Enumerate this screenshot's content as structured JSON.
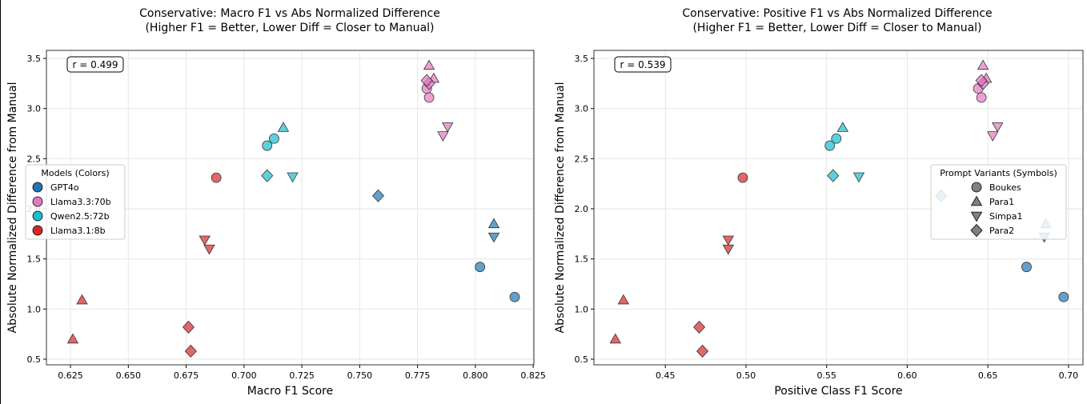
{
  "chart_data": [
    {
      "type": "scatter",
      "title": "Conservative: Macro F1 vs Abs Normalized Difference",
      "subtitle": "(Higher F1 = Better, Lower Diff = Closer to Manual)",
      "xlabel": "Macro F1 Score",
      "ylabel": "Absolute Normalized Difference from Manual",
      "xlim": [
        0.6146,
        0.8253
      ],
      "ylim": [
        0.444,
        3.58
      ],
      "xticks": [
        "0.625",
        "0.650",
        "0.675",
        "0.700",
        "0.725",
        "0.750",
        "0.775",
        "0.800",
        "0.825"
      ],
      "yticks": [
        "0.5",
        "1.0",
        "1.5",
        "2.0",
        "2.5",
        "3.0",
        "3.5"
      ],
      "grid": true,
      "annotation": "r = 0.499",
      "legend": {
        "title": "Models (Colors)",
        "placement": "center-left",
        "entries": [
          "GPT4o",
          "Llama3.3:70b",
          "Qwen2.5:72b",
          "Llama3.1:8b"
        ]
      },
      "series": [
        {
          "name": "GPT4o",
          "points": [
            {
              "x": 0.802,
              "y": 1.42,
              "variant": "Boukes"
            },
            {
              "x": 0.817,
              "y": 1.12,
              "variant": "Boukes"
            },
            {
              "x": 0.808,
              "y": 1.85,
              "variant": "Para1"
            },
            {
              "x": 0.808,
              "y": 1.72,
              "variant": "Simpa1"
            },
            {
              "x": 0.758,
              "y": 2.13,
              "variant": "Para2"
            }
          ]
        },
        {
          "name": "Llama3.3:70b",
          "points": [
            {
              "x": 0.779,
              "y": 3.2,
              "variant": "Boukes"
            },
            {
              "x": 0.78,
              "y": 3.11,
              "variant": "Boukes"
            },
            {
              "x": 0.78,
              "y": 3.43,
              "variant": "Para1"
            },
            {
              "x": 0.782,
              "y": 3.3,
              "variant": "Para1"
            },
            {
              "x": 0.788,
              "y": 2.82,
              "variant": "Simpa1"
            },
            {
              "x": 0.786,
              "y": 2.73,
              "variant": "Simpa1"
            },
            {
              "x": 0.78,
              "y": 3.25,
              "variant": "Para2"
            },
            {
              "x": 0.779,
              "y": 3.28,
              "variant": "Para2"
            }
          ]
        },
        {
          "name": "Qwen2.5:72b",
          "points": [
            {
              "x": 0.71,
              "y": 2.63,
              "variant": "Boukes"
            },
            {
              "x": 0.713,
              "y": 2.7,
              "variant": "Boukes"
            },
            {
              "x": 0.717,
              "y": 2.81,
              "variant": "Para1"
            },
            {
              "x": 0.721,
              "y": 2.32,
              "variant": "Simpa1"
            },
            {
              "x": 0.71,
              "y": 2.33,
              "variant": "Para2"
            }
          ]
        },
        {
          "name": "Llama3.1:8b",
          "points": [
            {
              "x": 0.688,
              "y": 2.31,
              "variant": "Boukes"
            },
            {
              "x": 0.63,
              "y": 1.09,
              "variant": "Para1"
            },
            {
              "x": 0.626,
              "y": 0.7,
              "variant": "Para1"
            },
            {
              "x": 0.683,
              "y": 1.69,
              "variant": "Simpa1"
            },
            {
              "x": 0.685,
              "y": 1.6,
              "variant": "Simpa1"
            },
            {
              "x": 0.676,
              "y": 0.82,
              "variant": "Para2"
            },
            {
              "x": 0.677,
              "y": 0.58,
              "variant": "Para2"
            }
          ]
        }
      ]
    },
    {
      "type": "scatter",
      "title": "Conservative: Positive F1 vs Abs Normalized Difference",
      "subtitle": "(Higher F1 = Better, Lower Diff = Closer to Manual)",
      "xlabel": "Positive Class F1 Score",
      "ylabel": "Absolute Normalized Difference from Manual",
      "xlim": [
        0.4057,
        0.709
      ],
      "ylim": [
        0.444,
        3.58
      ],
      "xticks": [
        "0.45",
        "0.50",
        "0.55",
        "0.60",
        "0.65",
        "0.70"
      ],
      "yticks": [
        "0.5",
        "1.0",
        "1.5",
        "2.0",
        "2.5",
        "3.0",
        "3.5"
      ],
      "grid": true,
      "annotation": "r = 0.539",
      "legend": {
        "title": "Prompt Variants (Symbols)",
        "placement": "center-right",
        "entries": [
          "Boukes",
          "Para1",
          "Simpa1",
          "Para2"
        ]
      },
      "series": [
        {
          "name": "GPT4o",
          "points": [
            {
              "x": 0.674,
              "y": 1.42,
              "variant": "Boukes"
            },
            {
              "x": 0.697,
              "y": 1.12,
              "variant": "Boukes"
            },
            {
              "x": 0.686,
              "y": 1.85,
              "variant": "Para1"
            },
            {
              "x": 0.685,
              "y": 1.72,
              "variant": "Simpa1"
            },
            {
              "x": 0.621,
              "y": 2.13,
              "variant": "Para2"
            }
          ]
        },
        {
          "name": "Llama3.3:70b",
          "points": [
            {
              "x": 0.644,
              "y": 3.2,
              "variant": "Boukes"
            },
            {
              "x": 0.646,
              "y": 3.11,
              "variant": "Boukes"
            },
            {
              "x": 0.647,
              "y": 3.43,
              "variant": "Para1"
            },
            {
              "x": 0.649,
              "y": 3.3,
              "variant": "Para1"
            },
            {
              "x": 0.656,
              "y": 2.82,
              "variant": "Simpa1"
            },
            {
              "x": 0.653,
              "y": 2.73,
              "variant": "Simpa1"
            },
            {
              "x": 0.647,
              "y": 3.25,
              "variant": "Para2"
            },
            {
              "x": 0.646,
              "y": 3.28,
              "variant": "Para2"
            }
          ]
        },
        {
          "name": "Qwen2.5:72b",
          "points": [
            {
              "x": 0.552,
              "y": 2.63,
              "variant": "Boukes"
            },
            {
              "x": 0.556,
              "y": 2.7,
              "variant": "Boukes"
            },
            {
              "x": 0.56,
              "y": 2.81,
              "variant": "Para1"
            },
            {
              "x": 0.57,
              "y": 2.32,
              "variant": "Simpa1"
            },
            {
              "x": 0.554,
              "y": 2.33,
              "variant": "Para2"
            }
          ]
        },
        {
          "name": "Llama3.1:8b",
          "points": [
            {
              "x": 0.498,
              "y": 2.31,
              "variant": "Boukes"
            },
            {
              "x": 0.424,
              "y": 1.09,
              "variant": "Para1"
            },
            {
              "x": 0.419,
              "y": 0.7,
              "variant": "Para1"
            },
            {
              "x": 0.489,
              "y": 1.69,
              "variant": "Simpa1"
            },
            {
              "x": 0.489,
              "y": 1.6,
              "variant": "Simpa1"
            },
            {
              "x": 0.471,
              "y": 0.82,
              "variant": "Para2"
            },
            {
              "x": 0.473,
              "y": 0.58,
              "variant": "Para2"
            }
          ]
        }
      ]
    }
  ],
  "colors": {
    "GPT4o": "#1f77b4",
    "Llama3.3:70b": "#e377c2",
    "Qwen2.5:72b": "#17becf",
    "Llama3.1:8b": "#d62728",
    "variant_legend": "#808080"
  },
  "markers": {
    "Boukes": "circle",
    "Para1": "triangle-up",
    "Simpa1": "triangle-down",
    "Para2": "diamond"
  }
}
